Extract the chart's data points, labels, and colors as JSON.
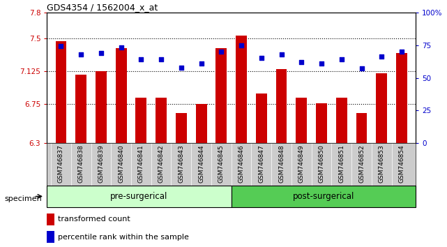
{
  "title": "GDS4354 / 1562004_x_at",
  "samples": [
    "GSM746837",
    "GSM746838",
    "GSM746839",
    "GSM746840",
    "GSM746841",
    "GSM746842",
    "GSM746843",
    "GSM746844",
    "GSM746845",
    "GSM746846",
    "GSM746847",
    "GSM746848",
    "GSM746849",
    "GSM746850",
    "GSM746851",
    "GSM746852",
    "GSM746853",
    "GSM746854"
  ],
  "bar_values": [
    7.47,
    7.09,
    7.13,
    7.39,
    6.82,
    6.82,
    6.65,
    6.75,
    7.39,
    7.53,
    6.87,
    7.15,
    6.82,
    6.76,
    6.82,
    6.65,
    7.1,
    7.33
  ],
  "percentile_values": [
    74,
    68,
    69,
    73,
    64,
    64,
    58,
    61,
    70,
    75,
    65,
    68,
    62,
    61,
    64,
    57,
    66,
    70
  ],
  "bar_color": "#CC0000",
  "percentile_color": "#0000CC",
  "ylim_left": [
    6.3,
    7.8
  ],
  "ylim_right": [
    0,
    100
  ],
  "yticks_left": [
    6.3,
    6.75,
    7.125,
    7.5,
    7.8
  ],
  "ytick_labels_left": [
    "6.3",
    "6.75",
    "7.125",
    "7.5",
    "7.8"
  ],
  "yticks_right": [
    0,
    25,
    50,
    75,
    100
  ],
  "ytick_labels_right": [
    "0",
    "25",
    "50",
    "75",
    "100%"
  ],
  "hlines": [
    6.75,
    7.125,
    7.5
  ],
  "pre_surgical_count": 9,
  "post_surgical_count": 9,
  "pre_surgical_label": "pre-surgerical",
  "post_surgical_label": "post-surgerical",
  "specimen_label": "specimen",
  "legend_bar_label": "transformed count",
  "legend_pct_label": "percentile rank within the sample",
  "pre_color": "#ccffcc",
  "post_color": "#55cc55",
  "tick_bg_color": "#cccccc",
  "background_color": "#ffffff"
}
